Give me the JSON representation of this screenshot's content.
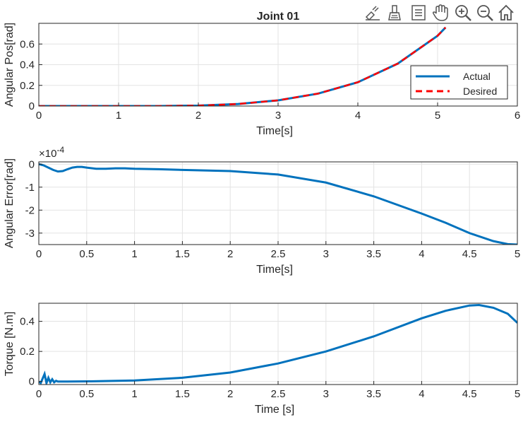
{
  "figure": {
    "title": "Joint 01"
  },
  "toolbar": {
    "icons": [
      "edit-plot-icon",
      "brush-icon",
      "legend-toggle-icon",
      "pan-hand-icon",
      "zoom-in-icon",
      "zoom-out-icon",
      "home-icon"
    ]
  },
  "chart_data": [
    {
      "type": "line",
      "title": "Joint 01",
      "xlabel": "Time[s]",
      "ylabel": "Angular Pos[rad]",
      "xlim": [
        0,
        6
      ],
      "ylim": [
        0,
        0.8
      ],
      "xticks": [
        0,
        1,
        2,
        3,
        4,
        5,
        6
      ],
      "yticks": [
        0,
        0.2,
        0.4,
        0.6
      ],
      "xtick_labels": [
        "0",
        "1",
        "2",
        "3",
        "4",
        "5",
        "6"
      ],
      "ytick_labels": [
        "0",
        "0.2",
        "0.4",
        "0.6"
      ],
      "grid": true,
      "legend_position": "right",
      "series": [
        {
          "name": "Actual",
          "color": "#0072BD",
          "style": "solid",
          "x": [
            0,
            0.5,
            1,
            1.5,
            2,
            2.5,
            3,
            3.5,
            4,
            4.5,
            5,
            5.1
          ],
          "y": [
            0,
            0,
            0,
            0.0004,
            0.004,
            0.02,
            0.055,
            0.12,
            0.23,
            0.41,
            0.68,
            0.76
          ]
        },
        {
          "name": "Desired",
          "color": "#FF0000",
          "style": "dashed",
          "x": [
            0,
            0.5,
            1,
            1.5,
            2,
            2.5,
            3,
            3.5,
            4,
            4.5,
            5,
            5.1
          ],
          "y": [
            0,
            0,
            0,
            0.0004,
            0.004,
            0.02,
            0.055,
            0.12,
            0.23,
            0.41,
            0.68,
            0.76
          ]
        }
      ]
    },
    {
      "type": "line",
      "xlabel": "Time[s]",
      "ylabel": "Angular Error[rad]",
      "xlim": [
        0,
        5
      ],
      "ylim": [
        -3.5,
        0.1
      ],
      "y_multiplier": "×10",
      "y_multiplier_exponent": "-4",
      "xticks": [
        0,
        0.5,
        1,
        1.5,
        2,
        2.5,
        3,
        3.5,
        4,
        4.5,
        5
      ],
      "yticks": [
        0,
        -1,
        -2,
        -3
      ],
      "xtick_labels": [
        "0",
        "0.5",
        "1",
        "1.5",
        "2",
        "2.5",
        "3",
        "3.5",
        "4",
        "4.5",
        "5"
      ],
      "ytick_labels": [
        "0",
        "-1",
        "-2",
        "-3"
      ],
      "grid": true,
      "series": [
        {
          "color": "#0072BD",
          "x": [
            0,
            0.05,
            0.1,
            0.15,
            0.2,
            0.25,
            0.3,
            0.35,
            0.4,
            0.45,
            0.5,
            0.6,
            0.7,
            0.8,
            0.9,
            1,
            1.25,
            1.5,
            2,
            2.5,
            3,
            3.5,
            4,
            4.25,
            4.5,
            4.75,
            4.9,
            5
          ],
          "y": [
            0,
            -0.05,
            -0.15,
            -0.25,
            -0.32,
            -0.3,
            -0.22,
            -0.15,
            -0.12,
            -0.12,
            -0.15,
            -0.2,
            -0.2,
            -0.18,
            -0.18,
            -0.2,
            -0.22,
            -0.25,
            -0.3,
            -0.45,
            -0.8,
            -1.4,
            -2.15,
            -2.55,
            -3.0,
            -3.35,
            -3.48,
            -3.5
          ]
        }
      ]
    },
    {
      "type": "line",
      "xlabel": "Time [s]",
      "ylabel": "Torque [N.m]",
      "xlim": [
        0,
        5
      ],
      "ylim": [
        -0.02,
        0.52
      ],
      "xticks": [
        0,
        0.5,
        1,
        1.5,
        2,
        2.5,
        3,
        3.5,
        4,
        4.5,
        5
      ],
      "yticks": [
        0,
        0.2,
        0.4
      ],
      "xtick_labels": [
        "0",
        "0.5",
        "1",
        "1.5",
        "2",
        "2.5",
        "3",
        "3.5",
        "4",
        "4.5",
        "5"
      ],
      "ytick_labels": [
        "0",
        "0.2",
        "0.4"
      ],
      "grid": true,
      "series": [
        {
          "color": "#0072BD",
          "x": [
            0,
            0.02,
            0.04,
            0.06,
            0.08,
            0.1,
            0.12,
            0.14,
            0.16,
            0.18,
            0.2,
            0.3,
            0.5,
            1,
            1.5,
            2,
            2.5,
            3,
            3.5,
            4,
            4.25,
            4.5,
            4.6,
            4.75,
            4.9,
            5
          ],
          "y": [
            0,
            -0.01,
            0.02,
            0.05,
            -0.01,
            0.025,
            -0.005,
            0.015,
            -0.005,
            0.005,
            0,
            0,
            0.001,
            0.007,
            0.025,
            0.06,
            0.12,
            0.2,
            0.3,
            0.42,
            0.47,
            0.505,
            0.508,
            0.49,
            0.45,
            0.39
          ]
        }
      ]
    }
  ]
}
